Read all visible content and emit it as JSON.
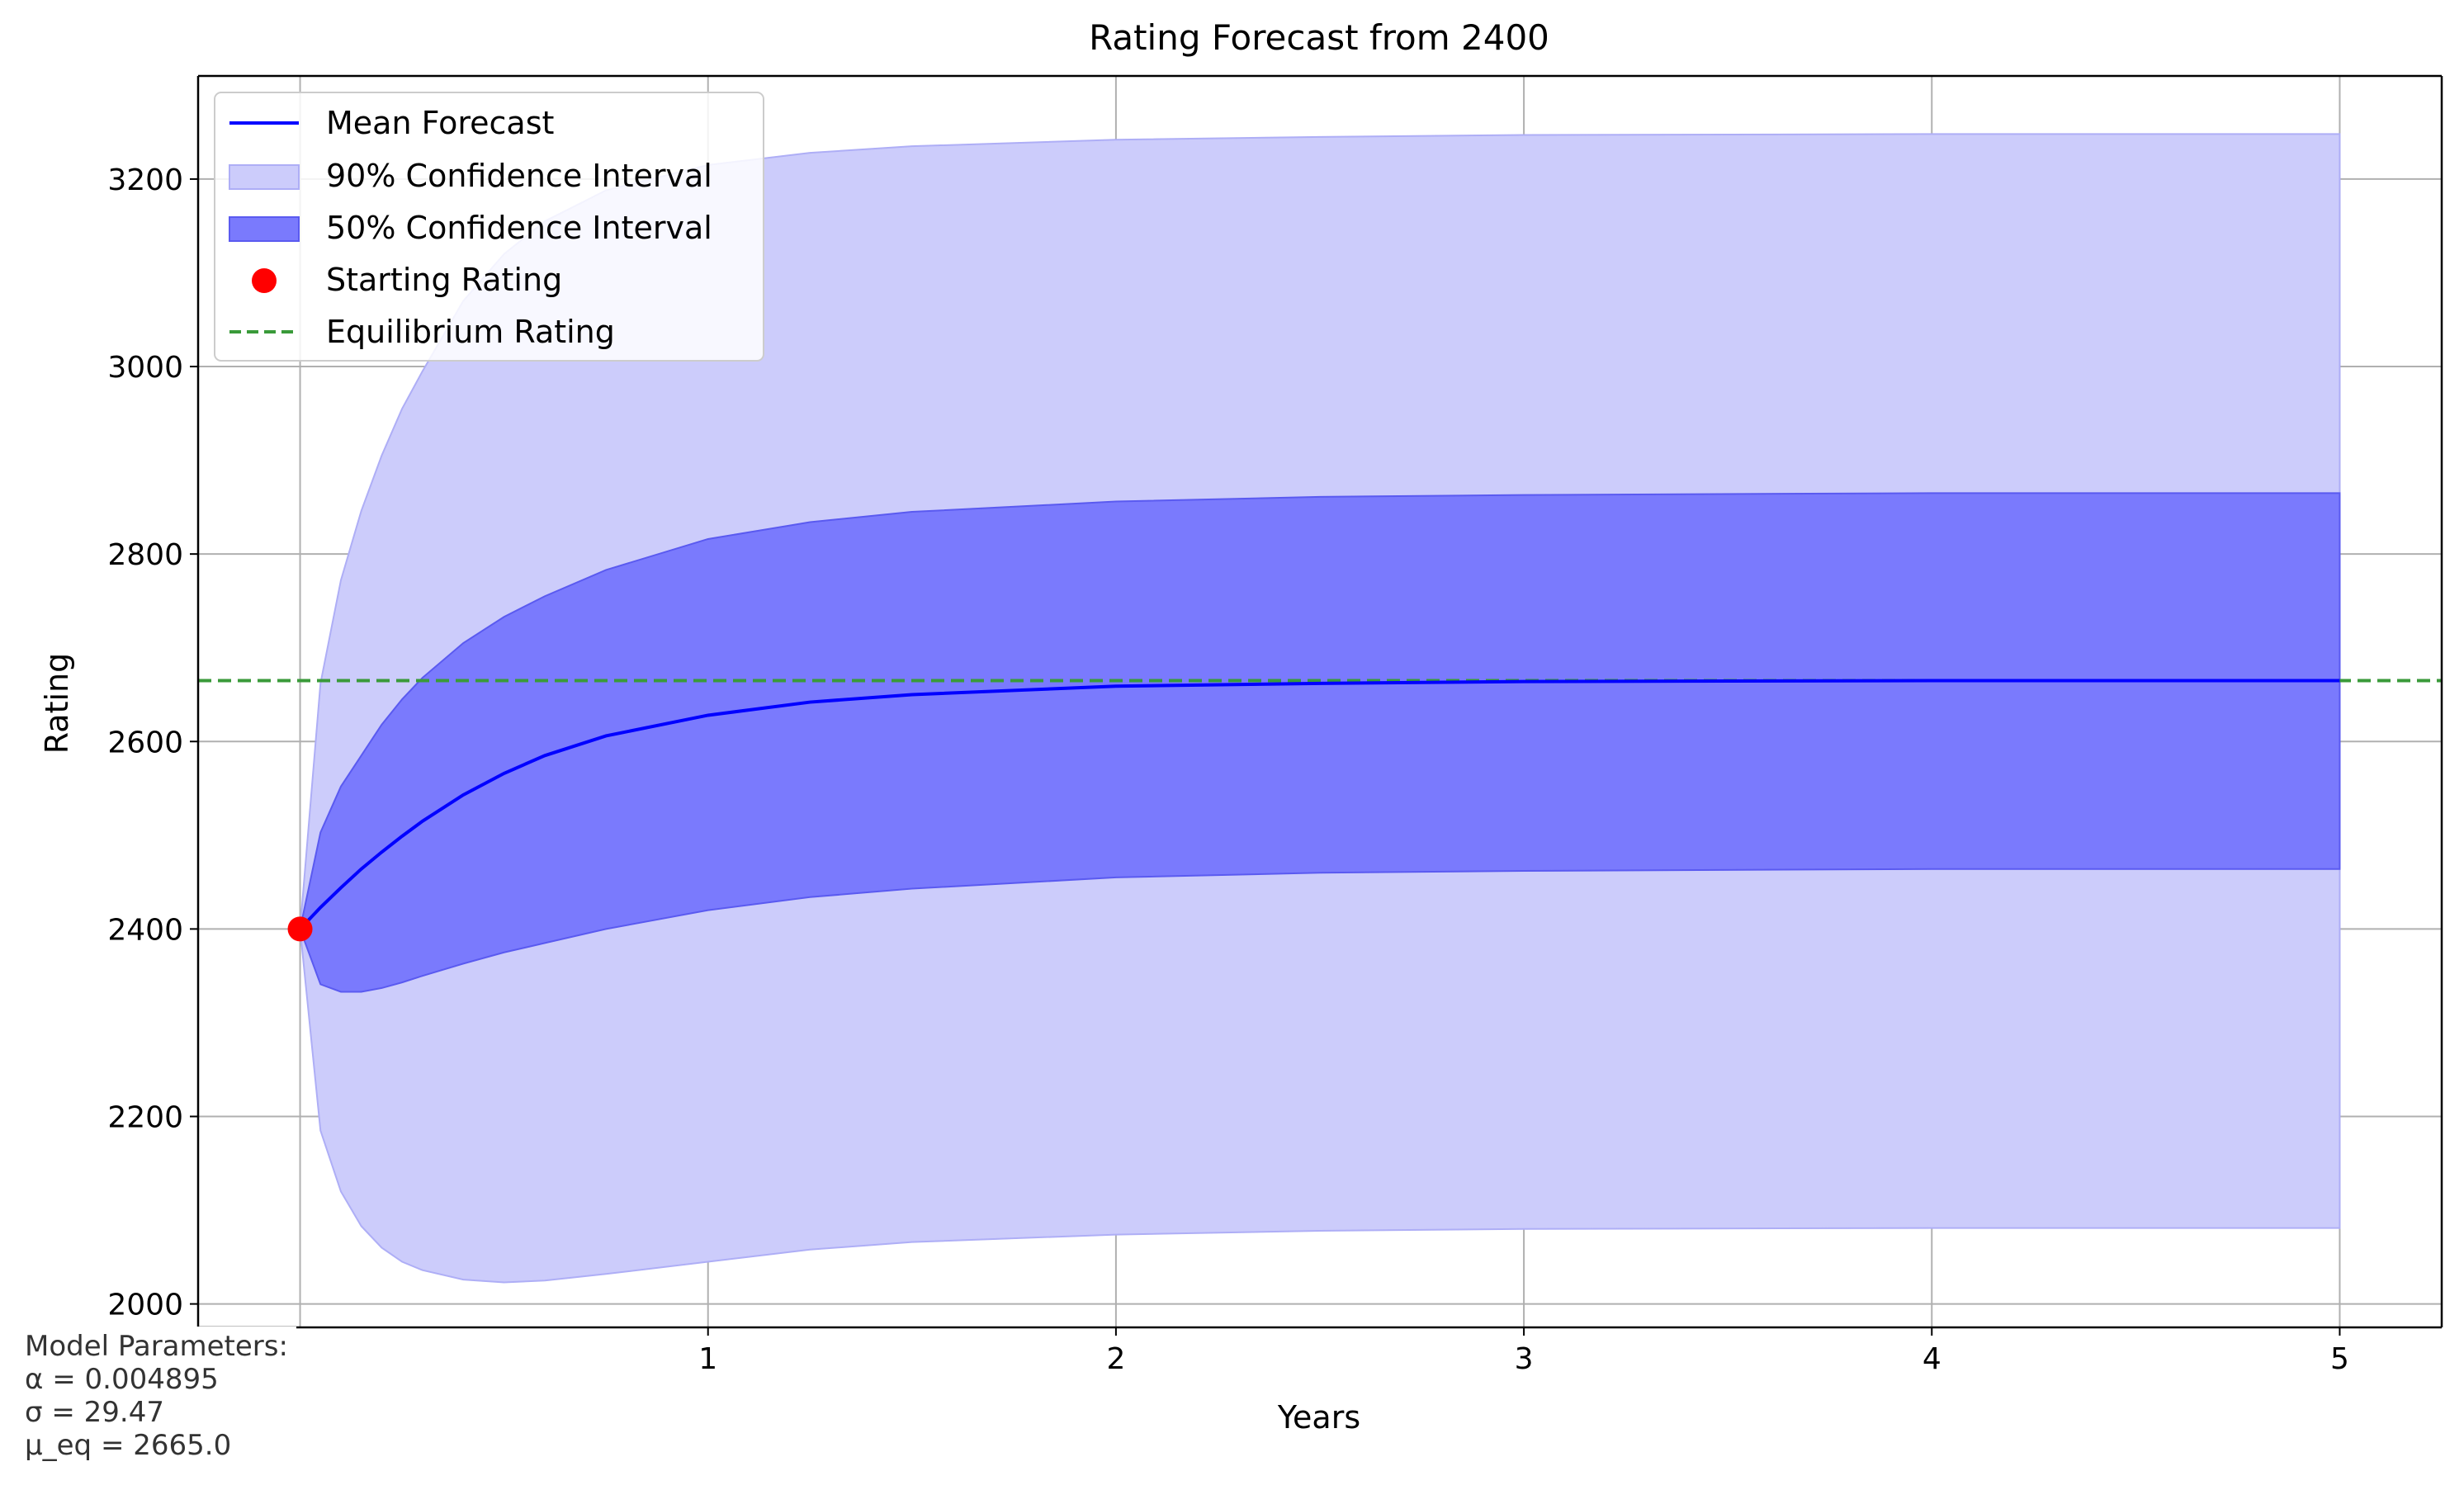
{
  "chart_data": {
    "type": "line",
    "title": "Rating Forecast from 2400",
    "xlabel": "Years",
    "ylabel": "Rating",
    "xlim": [
      -0.25,
      5.25
    ],
    "ylim": [
      1975,
      3310
    ],
    "xticks": [
      1,
      2,
      3,
      4,
      5
    ],
    "yticks": [
      2000,
      2200,
      2400,
      2600,
      2800,
      3000,
      3200
    ],
    "grid": true,
    "legend_position": "upper-left",
    "colors": {
      "mean": "#0000ff",
      "ci90": "#ccccfb",
      "ci90_edge": "#aeaef6",
      "ci50": "#7a7afd",
      "ci50_edge": "#5a5af0",
      "start_point": "#ff0000",
      "equilibrium": "#3a9a3a",
      "grid": "#b0b0b0"
    },
    "x": [
      0,
      0.05,
      0.1,
      0.15,
      0.2,
      0.25,
      0.3,
      0.4,
      0.5,
      0.6,
      0.75,
      1.0,
      1.25,
      1.5,
      2.0,
      2.5,
      3.0,
      4.0,
      5.0
    ],
    "series": [
      {
        "name": "Mean Forecast",
        "kind": "line",
        "values": [
          2400,
          2423,
          2444,
          2464,
          2482,
          2499,
          2515,
          2543,
          2566,
          2585,
          2606,
          2628,
          2642,
          2650,
          2659,
          2662,
          2664,
          2665,
          2665
        ]
      },
      {
        "name": "90% Confidence Interval",
        "kind": "band",
        "lower": [
          2400,
          2185,
          2120,
          2083,
          2060,
          2045,
          2036,
          2026,
          2023,
          2025,
          2032,
          2045,
          2058,
          2066,
          2074,
          2078,
          2080,
          2081,
          2081
        ],
        "upper": [
          2400,
          2662,
          2772,
          2846,
          2905,
          2955,
          2995,
          3070,
          3120,
          3155,
          3188,
          3215,
          3228,
          3235,
          3242,
          3245,
          3247,
          3248,
          3248
        ]
      },
      {
        "name": "50% Confidence Interval",
        "kind": "band",
        "lower": [
          2400,
          2341,
          2333,
          2333,
          2337,
          2343,
          2350,
          2363,
          2375,
          2385,
          2400,
          2420,
          2434,
          2443,
          2455,
          2460,
          2462,
          2464,
          2464
        ],
        "upper": [
          2400,
          2503,
          2552,
          2585,
          2618,
          2645,
          2668,
          2705,
          2733,
          2755,
          2783,
          2816,
          2834,
          2845,
          2856,
          2861,
          2863,
          2865,
          2865
        ]
      }
    ],
    "starting_point": {
      "name": "Starting Rating",
      "x": 0,
      "y": 2400
    },
    "equilibrium": {
      "name": "Equilibrium Rating",
      "y": 2665
    }
  },
  "parameters": {
    "heading": "Model Parameters:",
    "alpha": "α = 0.004895",
    "sigma": "σ = 29.47",
    "mu": "μ_eq = 2665.0"
  }
}
